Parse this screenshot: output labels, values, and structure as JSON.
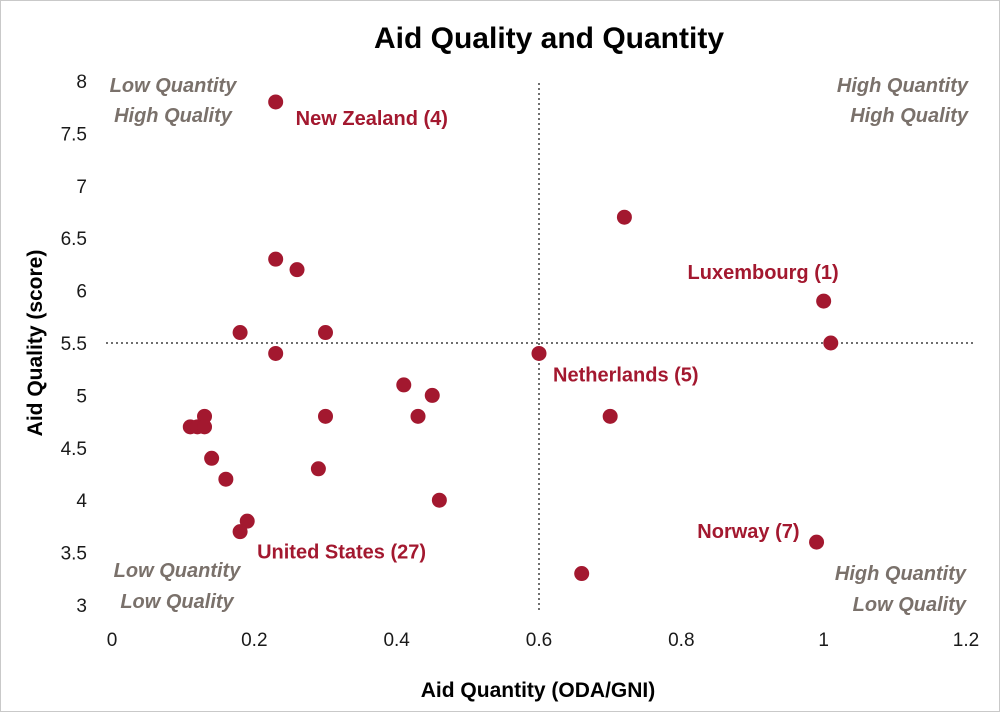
{
  "chart_data": {
    "type": "scatter",
    "title": "Aid Quality and Quantity",
    "xlabel": "Aid Quantity (ODA/GNI)",
    "ylabel": "Aid Quality (score)",
    "xlim": [
      0,
      1.2
    ],
    "ylim": [
      3,
      8
    ],
    "x_ticks": [
      "0",
      "0.2",
      "0.4",
      "0.6",
      "0.8",
      "1",
      "1.2"
    ],
    "y_ticks": [
      "3",
      "3.5",
      "4",
      "4.5",
      "5",
      "5.5",
      "6",
      "6.5",
      "7",
      "7.5",
      "8"
    ],
    "grid": false,
    "reference_lines": {
      "x": 0.6,
      "y": 5.5,
      "style": "dotted"
    },
    "marker_color": "#a3182f",
    "quadrant_labels": [
      {
        "line1": "Low Quantity",
        "line2": "High Quality",
        "corner": "top-left"
      },
      {
        "line1": "High Quantity",
        "line2": "High Quality",
        "corner": "top-right"
      },
      {
        "line1": "Low Quantity",
        "line2": "Low Quality",
        "corner": "bottom-left"
      },
      {
        "line1": "High Quantity",
        "line2": "Low Quality",
        "corner": "bottom-right"
      }
    ],
    "points": [
      {
        "x": 0.23,
        "y": 7.8,
        "label": "New Zealand (4)"
      },
      {
        "x": 0.72,
        "y": 6.7
      },
      {
        "x": 0.23,
        "y": 6.3
      },
      {
        "x": 0.26,
        "y": 6.2
      },
      {
        "x": 1.0,
        "y": 5.9,
        "label": "Luxembourg (1)"
      },
      {
        "x": 0.18,
        "y": 5.6
      },
      {
        "x": 0.3,
        "y": 5.6
      },
      {
        "x": 1.01,
        "y": 5.5
      },
      {
        "x": 0.23,
        "y": 5.4
      },
      {
        "x": 0.6,
        "y": 5.4,
        "label": "Netherlands (5)"
      },
      {
        "x": 0.41,
        "y": 5.1
      },
      {
        "x": 0.45,
        "y": 5.0
      },
      {
        "x": 0.13,
        "y": 4.8
      },
      {
        "x": 0.3,
        "y": 4.8
      },
      {
        "x": 0.43,
        "y": 4.8
      },
      {
        "x": 0.7,
        "y": 4.8
      },
      {
        "x": 0.11,
        "y": 4.7
      },
      {
        "x": 0.12,
        "y": 4.7
      },
      {
        "x": 0.13,
        "y": 4.7
      },
      {
        "x": 0.14,
        "y": 4.4
      },
      {
        "x": 0.29,
        "y": 4.3
      },
      {
        "x": 0.16,
        "y": 4.2
      },
      {
        "x": 0.46,
        "y": 4.0
      },
      {
        "x": 0.19,
        "y": 3.8
      },
      {
        "x": 0.18,
        "y": 3.7,
        "label": "United States (27)"
      },
      {
        "x": 0.99,
        "y": 3.6,
        "label": "Norway (7)"
      },
      {
        "x": 0.66,
        "y": 3.3
      }
    ]
  }
}
